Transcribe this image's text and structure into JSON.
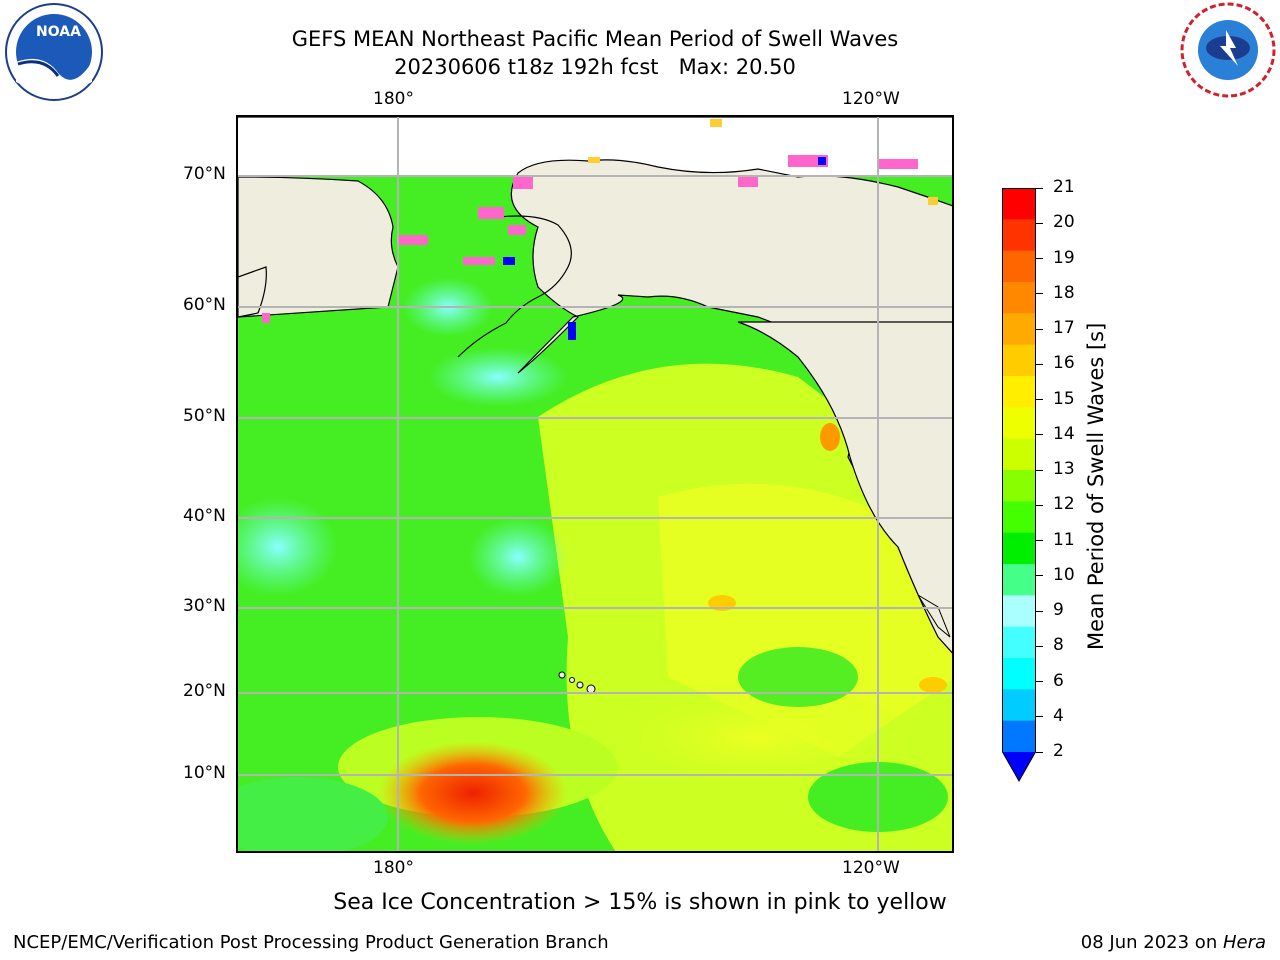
{
  "header": {
    "title_line1": "GEFS MEAN Northeast Pacific Mean Period of Swell Waves",
    "title_line2": "20230606 t18z 192h fcst   Max: 20.50"
  },
  "logos": {
    "left": "NOAA",
    "right": "NATIONAL WEATHER SERVICE"
  },
  "map": {
    "lon_labels_top": [
      "180°",
      "120°W"
    ],
    "lon_labels_bottom": [
      "180°",
      "120°W"
    ],
    "lat_labels": [
      "70°N",
      "60°N",
      "50°N",
      "40°N",
      "30°N",
      "20°N",
      "10°N"
    ],
    "land_color": "#efedde",
    "grid_color": "#b4b4b4"
  },
  "colorbar": {
    "label": "Mean Period of Swell Waves [s]",
    "ticks": [
      "21",
      "20",
      "19",
      "18",
      "17",
      "16",
      "15",
      "14",
      "13",
      "12",
      "11",
      "10",
      "9",
      "8",
      "6",
      "4",
      "2"
    ],
    "colors": [
      "#ff0000",
      "#ff3300",
      "#ff6600",
      "#ff8800",
      "#ffaa00",
      "#ffcc00",
      "#ffee00",
      "#eeff00",
      "#ccff00",
      "#88ff00",
      "#44ff00",
      "#00ee00",
      "#44ff88",
      "#aaffff",
      "#44ffff",
      "#00ffff",
      "#00ccff",
      "#0077ff",
      "#0000ff"
    ]
  },
  "notes": {
    "sea_ice": "Sea Ice Concentration > 15% is shown in pink to yellow"
  },
  "footer": {
    "left": "NCEP/EMC/Verification Post Processing Product Generation Branch",
    "right_prefix": "08 Jun 2023 on ",
    "right_italic": "Hera"
  }
}
